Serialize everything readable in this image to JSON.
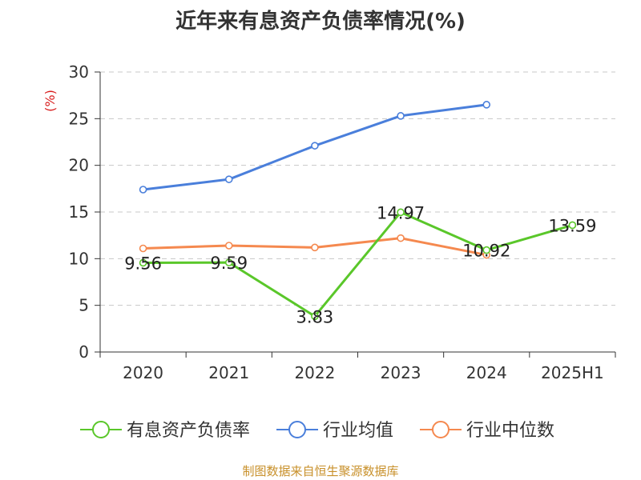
{
  "chart_data": {
    "type": "line",
    "title": "近年来有息资产负债率情况(%)",
    "ylabel": "(%)",
    "xlabel": "",
    "categories": [
      "2020",
      "2021",
      "2022",
      "2023",
      "2024",
      "2025H1"
    ],
    "ylim": [
      0,
      30
    ],
    "yticks": [
      0,
      5,
      10,
      15,
      20,
      25,
      30
    ],
    "grid": true,
    "legend_position": "bottom",
    "series": [
      {
        "name": "有息资产负债率",
        "color": "#5ac72a",
        "values": [
          9.56,
          9.59,
          3.83,
          14.97,
          10.92,
          13.59
        ],
        "labels": [
          "9.56",
          "9.59",
          "3.83",
          "14.97",
          "10.92",
          "13.59"
        ]
      },
      {
        "name": "行业均值",
        "color": "#4a7fdb",
        "values": [
          17.4,
          18.5,
          22.1,
          25.3,
          26.5,
          null
        ]
      },
      {
        "name": "行业中位数",
        "color": "#f5894f",
        "values": [
          11.1,
          11.4,
          11.2,
          12.2,
          10.4,
          null
        ]
      }
    ]
  },
  "source": "制图数据来自恒生聚源数据库"
}
